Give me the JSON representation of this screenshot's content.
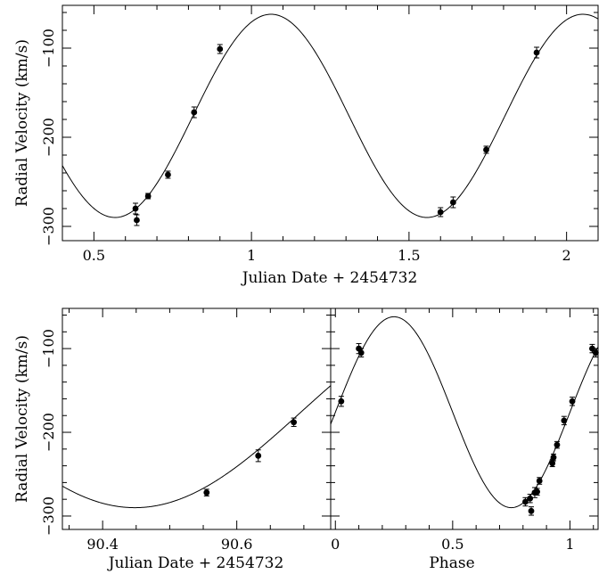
{
  "chart_data": [
    {
      "type": "scatter",
      "xlabel": "Julian Date + 2454732",
      "ylabel": "Radial Velocity (km/s)",
      "xlim": [
        0.4,
        2.1
      ],
      "ylim": [
        -316,
        -52
      ],
      "xticks": [
        0.5,
        1,
        1.5,
        2
      ],
      "xtick_labels": [
        "0.5",
        "1",
        "1.5",
        "2"
      ],
      "yticks": [
        -100,
        -200,
        -300
      ],
      "ytick_labels": [
        "−100",
        "−200",
        "−300"
      ],
      "model_curve": {
        "gamma": -176,
        "K": 114,
        "period": 0.99,
        "t_max": 1.062
      },
      "points": [
        {
          "x": 0.632,
          "y": -280,
          "err": 6
        },
        {
          "x": 0.636,
          "y": -293,
          "err": 6
        },
        {
          "x": 0.672,
          "y": -266,
          "err": 3
        },
        {
          "x": 0.735,
          "y": -242,
          "err": 4
        },
        {
          "x": 0.818,
          "y": -172,
          "err": 6
        },
        {
          "x": 0.9,
          "y": -101,
          "err": 5
        },
        {
          "x": 1.6,
          "y": -284,
          "err": 5
        },
        {
          "x": 1.64,
          "y": -273,
          "err": 6
        },
        {
          "x": 1.745,
          "y": -214,
          "err": 4
        },
        {
          "x": 1.905,
          "y": -105,
          "err": 6
        }
      ]
    },
    {
      "type": "scatter",
      "xlabel": "Julian Date + 2454732",
      "ylabel": "Radial Velocity (km/s)",
      "xlim": [
        90.34,
        90.74
      ],
      "ylim": [
        -316,
        -52
      ],
      "xticks": [
        90.4,
        90.6
      ],
      "xtick_labels": [
        "90.4",
        "90.6"
      ],
      "yticks": [
        -100,
        -200,
        -300
      ],
      "ytick_labels": [
        "−100",
        "−200",
        "−300"
      ],
      "model_curve": {
        "gamma": -176,
        "K": 114,
        "period": 0.99,
        "t_max": 90.943
      },
      "points": [
        {
          "x": 90.555,
          "y": -272,
          "err": 4
        },
        {
          "x": 90.632,
          "y": -228,
          "err": 7
        },
        {
          "x": 90.685,
          "y": -188,
          "err": 5
        }
      ]
    },
    {
      "type": "scatter",
      "xlabel": "Phase",
      "xlim": [
        -0.02,
        1.12
      ],
      "ylim": [
        -316,
        -52
      ],
      "xticks": [
        0,
        0.5,
        1
      ],
      "xtick_labels": [
        "0",
        "0.5",
        "1"
      ],
      "yticks": [
        -100,
        -200,
        -300
      ],
      "model_curve": {
        "gamma": -176,
        "K": 114,
        "phase_max": 0.25
      },
      "points": [
        {
          "x": 0.025,
          "y": -163,
          "err": 6
        },
        {
          "x": 0.1,
          "y": -100,
          "err": 6
        },
        {
          "x": 0.11,
          "y": -105,
          "err": 5
        },
        {
          "x": 0.81,
          "y": -283,
          "err": 5
        },
        {
          "x": 0.83,
          "y": -279,
          "err": 5
        },
        {
          "x": 0.835,
          "y": -294,
          "err": 5
        },
        {
          "x": 0.85,
          "y": -272,
          "err": 6
        },
        {
          "x": 0.86,
          "y": -271,
          "err": 4
        },
        {
          "x": 0.87,
          "y": -258,
          "err": 4
        },
        {
          "x": 0.925,
          "y": -237,
          "err": 4
        },
        {
          "x": 0.93,
          "y": -230,
          "err": 4
        },
        {
          "x": 0.945,
          "y": -215,
          "err": 4
        },
        {
          "x": 0.975,
          "y": -186,
          "err": 5
        },
        {
          "x": 1.01,
          "y": -163,
          "err": 5
        },
        {
          "x": 1.095,
          "y": -100,
          "err": 5
        },
        {
          "x": 1.11,
          "y": -105,
          "err": 5
        }
      ]
    }
  ]
}
